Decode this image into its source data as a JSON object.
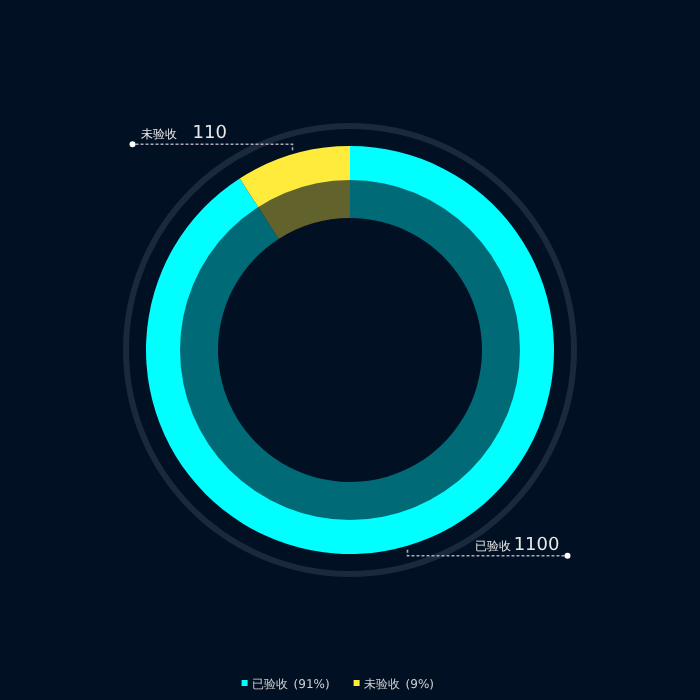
{
  "chart_data": {
    "type": "donut",
    "categories": [
      "已验收",
      "未验收"
    ],
    "values": [
      1100,
      110
    ],
    "colors": [
      "#00ffff",
      "#ffeb3b"
    ],
    "data_labels": true,
    "legend": "bottom",
    "annotations": [
      "(91%)",
      "(9%)"
    ]
  }
}
